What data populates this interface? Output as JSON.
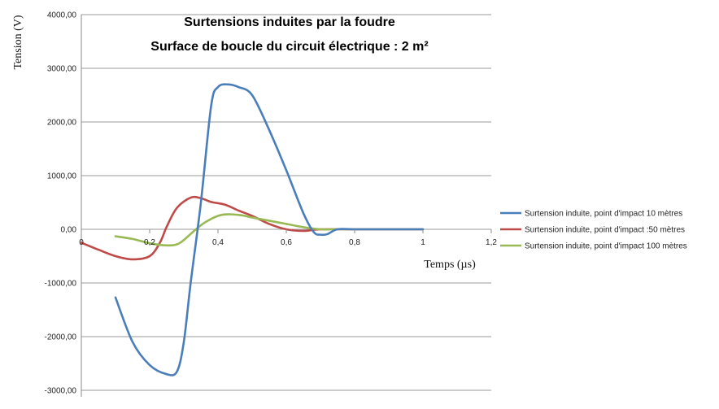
{
  "chart_data": {
    "type": "line",
    "title_lines": [
      "Surtensions induites par la foudre",
      "Surface de boucle du circuit électrique : 2   m²"
    ],
    "xlabel": "Temps (µs)",
    "ylabel": "Tension (V)",
    "xlim": [
      0,
      1.2
    ],
    "ylim": [
      -3000,
      4000
    ],
    "x_ticks": [
      "0",
      "0,2",
      "0,4",
      "0,6",
      "0,8",
      "1",
      "1,2"
    ],
    "y_ticks": [
      "4000,00",
      "3000,00",
      "2000,00",
      "1000,00",
      "0,00",
      "-1000,00",
      "-2000,00",
      "-3000,00"
    ],
    "grid": true,
    "legend_position": "right",
    "series": [
      {
        "name": "Surtension induite, point d'impact 10 mètres",
        "color": "#4a7ebb",
        "x": [
          0.1,
          0.15,
          0.2,
          0.25,
          0.28,
          0.3,
          0.32,
          0.35,
          0.38,
          0.4,
          0.43,
          0.46,
          0.5,
          0.55,
          0.6,
          0.65,
          0.68,
          0.7,
          0.72,
          0.75,
          0.8,
          0.9,
          1.0
        ],
        "y": [
          -1270,
          -2100,
          -2530,
          -2700,
          -2650,
          -2100,
          -1000,
          500,
          2300,
          2650,
          2700,
          2650,
          2500,
          1850,
          1100,
          300,
          -50,
          -100,
          -90,
          0,
          0,
          0,
          0
        ]
      },
      {
        "name": "Surtension induite, point d'impact :50 mètres",
        "color": "#be4b48",
        "x": [
          0,
          0.05,
          0.1,
          0.15,
          0.2,
          0.23,
          0.25,
          0.28,
          0.32,
          0.35,
          0.38,
          0.42,
          0.46,
          0.5,
          0.55,
          0.6,
          0.65,
          0.7,
          0.8,
          0.9,
          1.0
        ],
        "y": [
          -250,
          -380,
          -500,
          -560,
          -500,
          -250,
          50,
          400,
          590,
          580,
          510,
          460,
          350,
          250,
          100,
          0,
          -30,
          0,
          0,
          0,
          0
        ]
      },
      {
        "name": "Surtension induite, point d'impact 100 mètres",
        "color": "#98b954",
        "x": [
          0.1,
          0.15,
          0.2,
          0.25,
          0.28,
          0.3,
          0.33,
          0.36,
          0.4,
          0.43,
          0.47,
          0.5,
          0.55,
          0.6,
          0.65,
          0.7,
          0.75,
          0.8,
          0.9,
          1.0
        ],
        "y": [
          -130,
          -180,
          -260,
          -300,
          -280,
          -200,
          -30,
          120,
          250,
          280,
          260,
          220,
          160,
          100,
          40,
          0,
          0,
          0,
          0,
          0
        ]
      }
    ]
  }
}
